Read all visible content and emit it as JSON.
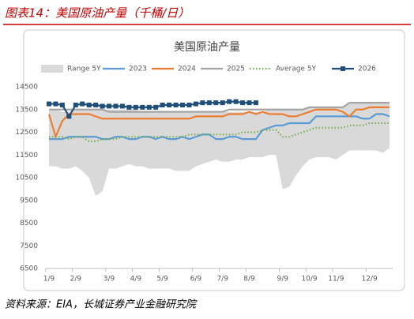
{
  "title": "图表14：美国原油产量（千桶/日）",
  "source": "资料来源：EIA，长城证券产业金融研究院",
  "chart_data": {
    "type": "line",
    "title": "美国原油产量",
    "categories": [
      "1/9",
      null,
      null,
      null,
      "2/9",
      null,
      null,
      null,
      null,
      "3/9",
      null,
      null,
      null,
      "4/9",
      null,
      null,
      null,
      "5/9",
      null,
      null,
      null,
      null,
      "6/9",
      null,
      null,
      null,
      "7/9",
      null,
      null,
      null,
      "8/9",
      null,
      null,
      null,
      null,
      "9/9",
      null,
      null,
      null,
      "10/9",
      null,
      null,
      null,
      "11/9",
      null,
      null,
      null,
      null,
      "12/9",
      null,
      null,
      null
    ],
    "ylim": [
      6500,
      14500
    ],
    "yticks": [
      6500,
      7500,
      8500,
      9500,
      10500,
      11500,
      12500,
      13500,
      14500
    ],
    "legend": "top",
    "series": [
      {
        "name": "Range 5Y",
        "color": "#d9d9d9",
        "high": [
          13500,
          13500,
          13400,
          13400,
          13500,
          13500,
          13500,
          13500,
          13500,
          13500,
          13500,
          13500,
          13500,
          13500,
          13400,
          13400,
          13400,
          13400,
          13400,
          13400,
          13400,
          13400,
          13400,
          13400,
          13400,
          13400,
          13400,
          13400,
          13400,
          13400,
          13400,
          13400,
          13400,
          13500,
          13500,
          13500,
          13500,
          13500,
          13500,
          13600,
          13600,
          13600,
          13600,
          13600,
          13600,
          13800,
          13800,
          13800,
          13800,
          13800,
          13800,
          13800
        ],
        "low": [
          11000,
          11000,
          10900,
          10900,
          11000,
          10800,
          10500,
          9700,
          9900,
          10900,
          10900,
          11000,
          11100,
          11000,
          11000,
          10900,
          10900,
          10900,
          10900,
          10800,
          10800,
          10800,
          11000,
          11100,
          11200,
          11300,
          11200,
          11200,
          11300,
          11300,
          11400,
          11400,
          11400,
          11500,
          11500,
          10000,
          10100,
          10600,
          11000,
          11300,
          11400,
          11400,
          11400,
          11300,
          11500,
          11700,
          11700,
          11700,
          11700,
          11700,
          11600,
          11800
        ]
      },
      {
        "name": "2023",
        "color": "#5b9bd5",
        "values": [
          12200,
          12200,
          12200,
          12300,
          12300,
          12300,
          12300,
          12300,
          12200,
          12200,
          12300,
          12300,
          12200,
          12200,
          12300,
          12300,
          12200,
          12300,
          12200,
          12200,
          12300,
          12200,
          12300,
          12400,
          12400,
          12200,
          12200,
          12300,
          12300,
          12200,
          12200,
          12200,
          12600,
          12700,
          12800,
          12800,
          12900,
          12900,
          12900,
          12900,
          13200,
          13200,
          13200,
          13200,
          13200,
          13200,
          13200,
          13100,
          13100,
          13300,
          13300,
          13200
        ]
      },
      {
        "name": "2024",
        "color": "#ed7d31",
        "values": [
          13300,
          12300,
          13000,
          13300,
          13300,
          13300,
          13300,
          13200,
          13100,
          13100,
          13100,
          13100,
          13100,
          13100,
          13100,
          13100,
          13100,
          13100,
          13100,
          13100,
          13100,
          13100,
          13200,
          13200,
          13200,
          13200,
          13200,
          13300,
          13300,
          13300,
          13400,
          13300,
          13400,
          13300,
          13300,
          13300,
          13200,
          13200,
          13300,
          13400,
          13500,
          13500,
          13500,
          13500,
          13400,
          13200,
          13500,
          13500,
          13600,
          13600,
          13600,
          13600
        ]
      },
      {
        "name": "2025",
        "color": "#a5a5a5",
        "values": [
          13500,
          13500,
          13500,
          13500,
          13500,
          13500,
          13500,
          13500,
          13500,
          13400,
          13400,
          13400,
          13400,
          13400,
          13400,
          13400,
          13400,
          13400,
          13400,
          13400,
          13400,
          13400,
          13400,
          13400,
          13400,
          13400,
          13400,
          13500,
          13500,
          13500,
          13500,
          13500,
          13500,
          13500,
          13500,
          13500,
          13500,
          13500,
          13500,
          13600,
          13600,
          13600,
          13600,
          13600,
          13600,
          13800,
          13800,
          13800,
          13800,
          13800,
          13800,
          13800
        ]
      },
      {
        "name": "Average 5Y",
        "color": "#70ad47",
        "dash": "dotted",
        "values": [
          12300,
          12300,
          12300,
          12200,
          12300,
          12300,
          12100,
          12100,
          12200,
          12200,
          12200,
          12300,
          12300,
          12300,
          12300,
          12300,
          12300,
          12300,
          12300,
          12300,
          12300,
          12400,
          12400,
          12400,
          12400,
          12400,
          12400,
          12400,
          12400,
          12500,
          12500,
          12500,
          12600,
          12600,
          12600,
          12300,
          12300,
          12400,
          12500,
          12600,
          12700,
          12700,
          12700,
          12700,
          12700,
          12800,
          12800,
          12800,
          12900,
          12900,
          12900,
          12900
        ]
      },
      {
        "name": "2026",
        "color": "#1f4e79",
        "marker": "square",
        "values": [
          13750,
          13750,
          13700,
          13200,
          13700,
          13750,
          13700,
          13700,
          13650,
          13650,
          13650,
          13650,
          13600,
          13600,
          13600,
          13600,
          13600,
          13700,
          13700,
          13700,
          13700,
          13700,
          13750,
          13800,
          13800,
          13800,
          13800,
          13850,
          13850,
          13800,
          13800,
          13800,
          null,
          null,
          null,
          null,
          null,
          null,
          null,
          null,
          null,
          null,
          null,
          null,
          null,
          null,
          null,
          null,
          null,
          null,
          null,
          null
        ]
      }
    ]
  }
}
